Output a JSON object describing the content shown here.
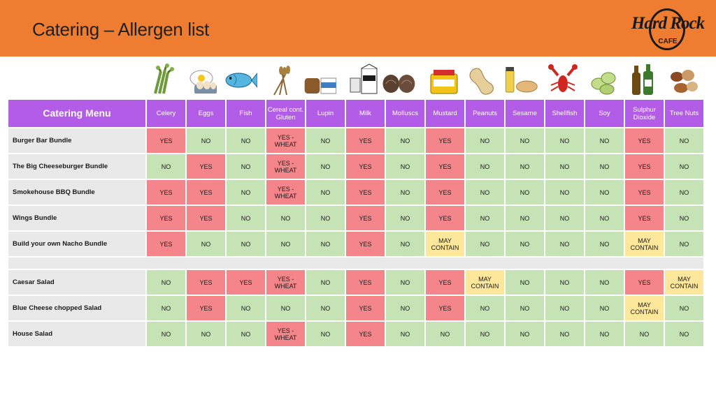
{
  "header": {
    "title": "Catering – Allergen list",
    "logo_main": "Hard Rock",
    "logo_sub": "CAFE",
    "bg_color": "#ef7d31"
  },
  "icons": [
    "celery-icon",
    "eggs-icon",
    "fish-icon",
    "cereal-icon",
    "lupin-icon",
    "milk-icon",
    "molluscs-icon",
    "mustard-icon",
    "peanuts-icon",
    "sesame-icon",
    "shellfish-icon",
    "soy-icon",
    "sulphur-dioxide-icon",
    "tree-nuts-icon"
  ],
  "table": {
    "menu_header": "Catering Menu",
    "columns": [
      "Celery",
      "Eggs",
      "Fish",
      "Cereal cont. Gluten",
      "Lupin",
      "Milk",
      "Molluscs",
      "Mustard",
      "Peanuts",
      "Sesame",
      "Shellfish",
      "Soy",
      "Sulphur Dioxide",
      "Tree Nuts"
    ],
    "group1": [
      {
        "name": "Burger Bar Bundle",
        "values": [
          "YES",
          "NO",
          "NO",
          "YES - WHEAT",
          "NO",
          "YES",
          "NO",
          "YES",
          "NO",
          "NO",
          "NO",
          "NO",
          "YES",
          "NO"
        ]
      },
      {
        "name": "The Big Cheeseburger Bundle",
        "values": [
          "NO",
          "YES",
          "NO",
          "YES - WHEAT",
          "NO",
          "YES",
          "NO",
          "YES",
          "NO",
          "NO",
          "NO",
          "NO",
          "YES",
          "NO"
        ]
      },
      {
        "name": "Smokehouse BBQ Bundle",
        "values": [
          "YES",
          "YES",
          "NO",
          "YES - WHEAT",
          "NO",
          "YES",
          "NO",
          "YES",
          "NO",
          "NO",
          "NO",
          "NO",
          "YES",
          "NO"
        ]
      },
      {
        "name": "Wings Bundle",
        "values": [
          "YES",
          "YES",
          "NO",
          "NO",
          "NO",
          "YES",
          "NO",
          "YES",
          "NO",
          "NO",
          "NO",
          "NO",
          "YES",
          "NO"
        ]
      },
      {
        "name": "Build your own Nacho Bundle",
        "values": [
          "YES",
          "NO",
          "NO",
          "NO",
          "NO",
          "YES",
          "NO",
          "MAY CONTAIN",
          "NO",
          "NO",
          "NO",
          "NO",
          "MAY CONTAIN",
          "NO"
        ]
      }
    ],
    "group2": [
      {
        "name": "Caesar Salad",
        "values": [
          "NO",
          "YES",
          "YES",
          "YES - WHEAT",
          "NO",
          "YES",
          "NO",
          "YES",
          "MAY CONTAIN",
          "NO",
          "NO",
          "NO",
          "YES",
          "MAY CONTAIN"
        ]
      },
      {
        "name": "Blue Cheese chopped Salad",
        "values": [
          "NO",
          "YES",
          "NO",
          "NO",
          "NO",
          "YES",
          "NO",
          "YES",
          "NO",
          "NO",
          "NO",
          "NO",
          "MAY CONTAIN",
          "NO"
        ]
      },
      {
        "name": "House Salad",
        "values": [
          "NO",
          "NO",
          "NO",
          "YES - WHEAT",
          "NO",
          "YES",
          "NO",
          "NO",
          "NO",
          "NO",
          "NO",
          "NO",
          "NO",
          "NO"
        ]
      }
    ]
  },
  "colors": {
    "yes": "#f4858a",
    "no": "#c6e3b5",
    "may": "#fde79a",
    "header": "#b25ce8"
  }
}
